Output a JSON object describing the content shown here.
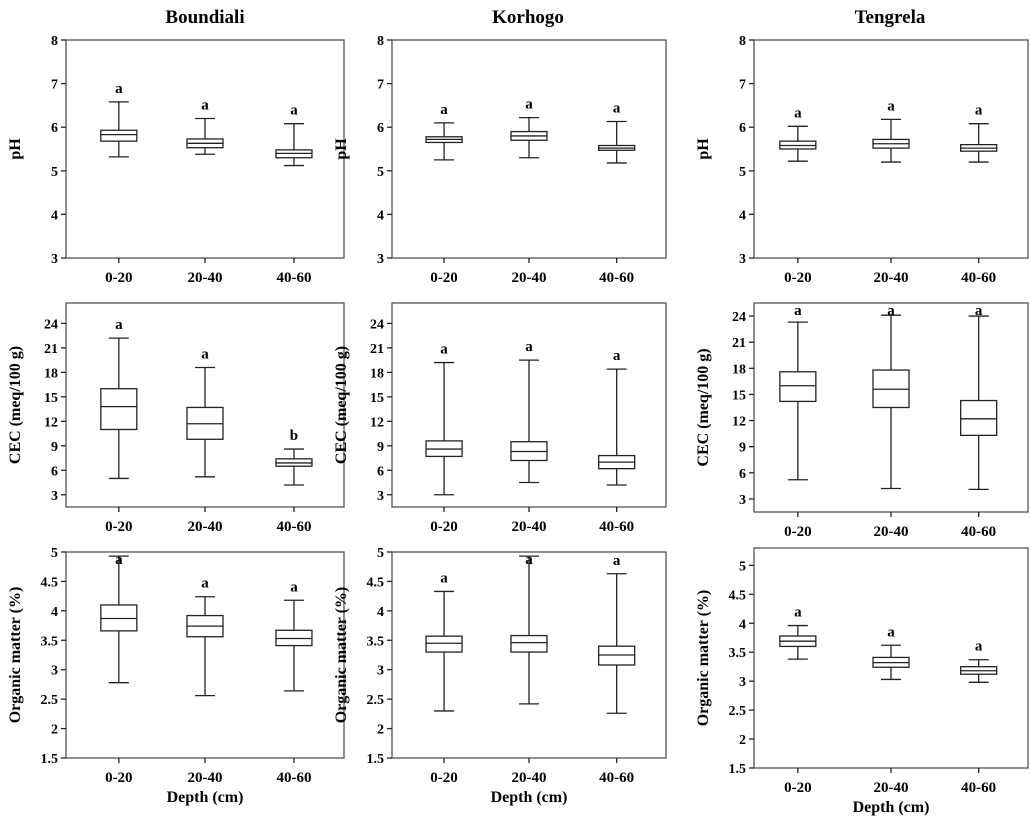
{
  "chart_data": [
    {
      "type": "box",
      "site": "Boundiali",
      "ylabel": "pH",
      "xlabel": "",
      "categories": [
        "0-20",
        "20-40",
        "40-60"
      ],
      "ylim": [
        3,
        8
      ],
      "yticks": [
        3,
        4,
        5,
        6,
        7,
        8
      ],
      "boxes": [
        {
          "min": 5.32,
          "q1": 5.68,
          "median": 5.83,
          "q3": 5.93,
          "max": 6.58,
          "letter": "a"
        },
        {
          "min": 5.38,
          "q1": 5.53,
          "median": 5.63,
          "q3": 5.73,
          "max": 6.2,
          "letter": "a"
        },
        {
          "min": 5.12,
          "q1": 5.3,
          "median": 5.4,
          "q3": 5.48,
          "max": 6.08,
          "letter": "a"
        }
      ]
    },
    {
      "type": "box",
      "site": "Korhogo",
      "ylabel": "pH",
      "xlabel": "",
      "categories": [
        "0-20",
        "20-40",
        "40-60"
      ],
      "ylim": [
        3,
        8
      ],
      "yticks": [
        3,
        4,
        5,
        6,
        7,
        8
      ],
      "boxes": [
        {
          "min": 5.25,
          "q1": 5.65,
          "median": 5.72,
          "q3": 5.78,
          "max": 6.1,
          "letter": "a"
        },
        {
          "min": 5.3,
          "q1": 5.7,
          "median": 5.8,
          "q3": 5.9,
          "max": 6.22,
          "letter": "a"
        },
        {
          "min": 5.18,
          "q1": 5.47,
          "median": 5.52,
          "q3": 5.58,
          "max": 6.13,
          "letter": "a"
        }
      ]
    },
    {
      "type": "box",
      "site": "Tengrela",
      "ylabel": "pH",
      "xlabel": "",
      "categories": [
        "0-20",
        "20-40",
        "40-60"
      ],
      "ylim": [
        3,
        8
      ],
      "yticks": [
        3,
        4,
        5,
        6,
        7,
        8
      ],
      "boxes": [
        {
          "min": 5.22,
          "q1": 5.5,
          "median": 5.58,
          "q3": 5.68,
          "max": 6.02,
          "letter": "a"
        },
        {
          "min": 5.2,
          "q1": 5.52,
          "median": 5.62,
          "q3": 5.72,
          "max": 6.18,
          "letter": "a"
        },
        {
          "min": 5.2,
          "q1": 5.45,
          "median": 5.52,
          "q3": 5.6,
          "max": 6.08,
          "letter": "a"
        }
      ]
    },
    {
      "type": "box",
      "site": "",
      "ylabel": "CEC (meq/100 g)",
      "xlabel": "",
      "categories": [
        "0-20",
        "20-40",
        "40-60"
      ],
      "ylim": [
        1.5,
        26.5
      ],
      "yticks": [
        3,
        6,
        9,
        12,
        15,
        18,
        21,
        24
      ],
      "boxes": [
        {
          "min": 5,
          "q1": 11,
          "median": 13.8,
          "q3": 16,
          "max": 22.2,
          "letter": "a"
        },
        {
          "min": 5.2,
          "q1": 9.8,
          "median": 11.7,
          "q3": 13.7,
          "max": 18.6,
          "letter": "a"
        },
        {
          "min": 4.2,
          "q1": 6.5,
          "median": 6.9,
          "q3": 7.4,
          "max": 8.6,
          "letter": "b"
        }
      ]
    },
    {
      "type": "box",
      "site": "",
      "ylabel": "CEC (meq/100 g)",
      "xlabel": "",
      "categories": [
        "0-20",
        "20-40",
        "40-60"
      ],
      "ylim": [
        1.5,
        26.5
      ],
      "yticks": [
        3,
        6,
        9,
        12,
        15,
        18,
        21,
        24
      ],
      "boxes": [
        {
          "min": 3,
          "q1": 7.7,
          "median": 8.6,
          "q3": 9.6,
          "max": 19.2,
          "letter": "a"
        },
        {
          "min": 4.5,
          "q1": 7.2,
          "median": 8.3,
          "q3": 9.5,
          "max": 19.5,
          "letter": "a"
        },
        {
          "min": 4.2,
          "q1": 6.2,
          "median": 7,
          "q3": 7.8,
          "max": 18.4,
          "letter": "a"
        }
      ]
    },
    {
      "type": "box",
      "site": "",
      "ylabel": "CEC (meq/100 g)",
      "xlabel": "",
      "categories": [
        "0-20",
        "20-40",
        "40-60"
      ],
      "ylim": [
        1.5,
        25.5
      ],
      "yticks": [
        3,
        6,
        9,
        12,
        15,
        18,
        21,
        24
      ],
      "boxes": [
        {
          "min": 5.2,
          "q1": 14.2,
          "median": 16,
          "q3": 17.6,
          "max": 23.3,
          "letter": "a"
        },
        {
          "min": 4.2,
          "q1": 13.5,
          "median": 15.6,
          "q3": 17.8,
          "max": 24.1,
          "letter": "a"
        },
        {
          "min": 4.1,
          "q1": 10.3,
          "median": 12.2,
          "q3": 14.3,
          "max": 24,
          "letter": "a"
        }
      ]
    },
    {
      "type": "box",
      "site": "",
      "ylabel": "Organic matter (%)",
      "xlabel": "Depth (cm)",
      "categories": [
        "0-20",
        "20-40",
        "40-60"
      ],
      "ylim": [
        1.5,
        5
      ],
      "yticks": [
        1.5,
        2,
        2.5,
        3,
        3.5,
        4,
        4.5,
        5
      ],
      "boxes": [
        {
          "min": 2.78,
          "q1": 3.66,
          "median": 3.87,
          "q3": 4.1,
          "max": 4.93,
          "letter": "a"
        },
        {
          "min": 2.56,
          "q1": 3.56,
          "median": 3.74,
          "q3": 3.92,
          "max": 4.24,
          "letter": "a"
        },
        {
          "min": 2.64,
          "q1": 3.41,
          "median": 3.53,
          "q3": 3.67,
          "max": 4.18,
          "letter": "a"
        }
      ]
    },
    {
      "type": "box",
      "site": "",
      "ylabel": "Organic matter (%)",
      "xlabel": "Depth (cm)",
      "categories": [
        "0-20",
        "20-40",
        "40-60"
      ],
      "ylim": [
        1.5,
        5
      ],
      "yticks": [
        1.5,
        2,
        2.5,
        3,
        3.5,
        4,
        4.5,
        5
      ],
      "boxes": [
        {
          "min": 2.3,
          "q1": 3.3,
          "median": 3.45,
          "q3": 3.57,
          "max": 4.33,
          "letter": "a"
        },
        {
          "min": 2.42,
          "q1": 3.3,
          "median": 3.46,
          "q3": 3.58,
          "max": 4.93,
          "letter": "a"
        },
        {
          "min": 2.26,
          "q1": 3.08,
          "median": 3.25,
          "q3": 3.4,
          "max": 4.63,
          "letter": "a"
        }
      ]
    },
    {
      "type": "box",
      "site": "",
      "ylabel": "Organic matter (%)",
      "xlabel": "Depth (cm)",
      "categories": [
        "0-20",
        "20-40",
        "40-60"
      ],
      "ylim": [
        1.5,
        5.3
      ],
      "yticks": [
        1.5,
        2,
        2.5,
        3,
        3.5,
        4,
        4.5,
        5
      ],
      "boxes": [
        {
          "min": 3.38,
          "q1": 3.6,
          "median": 3.69,
          "q3": 3.78,
          "max": 3.96,
          "letter": "a"
        },
        {
          "min": 3.03,
          "q1": 3.24,
          "median": 3.32,
          "q3": 3.41,
          "max": 3.62,
          "letter": "a"
        },
        {
          "min": 2.98,
          "q1": 3.12,
          "median": 3.18,
          "q3": 3.25,
          "max": 3.37,
          "letter": "a"
        }
      ]
    }
  ]
}
